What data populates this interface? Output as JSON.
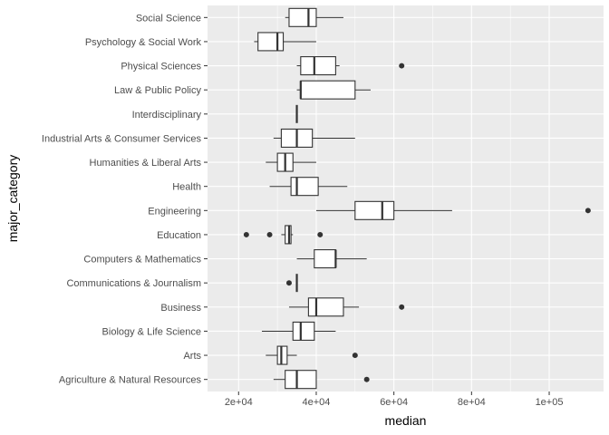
{
  "chart_data": {
    "type": "boxplot",
    "orientation": "horizontal",
    "xlabel": "median",
    "ylabel": "major_category",
    "xlim": [
      12000,
      114000
    ],
    "xticks": [
      20000,
      40000,
      60000,
      80000,
      100000
    ],
    "xtick_labels": [
      "2e+04",
      "4e+04",
      "6e+04",
      "8e+04",
      "1e+05"
    ],
    "grid": true,
    "legend": "none",
    "colors": {
      "panel": "#ebebeb",
      "grid": "#ffffff",
      "box_fill": "#ffffff",
      "box_line": "#333333",
      "outlier": "#333333"
    },
    "categories": [
      "Agriculture & Natural Resources",
      "Arts",
      "Biology & Life Science",
      "Business",
      "Communications & Journalism",
      "Computers & Mathematics",
      "Education",
      "Engineering",
      "Health",
      "Humanities & Liberal Arts",
      "Industrial Arts & Consumer Services",
      "Interdisciplinary",
      "Law & Public Policy",
      "Physical Sciences",
      "Psychology & Social Work",
      "Social Science"
    ],
    "boxes": [
      {
        "category": "Agriculture & Natural Resources",
        "min": 29000,
        "q1": 32000,
        "median": 35000,
        "q3": 40000,
        "max": 40000,
        "outliers": [
          53000
        ]
      },
      {
        "category": "Arts",
        "min": 27000,
        "q1": 30000,
        "median": 31000,
        "q3": 32500,
        "max": 35000,
        "outliers": [
          50000
        ]
      },
      {
        "category": "Biology & Life Science",
        "min": 26000,
        "q1": 34000,
        "median": 36000,
        "q3": 39500,
        "max": 45000,
        "outliers": []
      },
      {
        "category": "Business",
        "min": 33000,
        "q1": 38000,
        "median": 40000,
        "q3": 47000,
        "max": 51000,
        "outliers": [
          62000
        ]
      },
      {
        "category": "Communications & Journalism",
        "min": 35000,
        "q1": 35000,
        "median": 35000,
        "q3": 35000,
        "max": 35000,
        "outliers": [
          33000
        ]
      },
      {
        "category": "Computers & Mathematics",
        "min": 35000,
        "q1": 39500,
        "median": 45000,
        "q3": 45000,
        "max": 53000,
        "outliers": []
      },
      {
        "category": "Education",
        "min": 31000,
        "q1": 32000,
        "median": 33000,
        "q3": 33500,
        "max": 34000,
        "outliers": [
          22000,
          28000,
          41000
        ]
      },
      {
        "category": "Engineering",
        "min": 40000,
        "q1": 50000,
        "median": 57000,
        "q3": 60000,
        "max": 75000,
        "outliers": [
          110000
        ]
      },
      {
        "category": "Health",
        "min": 28000,
        "q1": 33500,
        "median": 35000,
        "q3": 40500,
        "max": 48000,
        "outliers": []
      },
      {
        "category": "Humanities & Liberal Arts",
        "min": 27000,
        "q1": 30000,
        "median": 32000,
        "q3": 34000,
        "max": 40000,
        "outliers": []
      },
      {
        "category": "Industrial Arts & Consumer Services",
        "min": 29000,
        "q1": 31000,
        "median": 35000,
        "q3": 39000,
        "max": 50000,
        "outliers": []
      },
      {
        "category": "Interdisciplinary",
        "min": 35000,
        "q1": 35000,
        "median": 35000,
        "q3": 35000,
        "max": 35000,
        "outliers": []
      },
      {
        "category": "Law & Public Policy",
        "min": 35000,
        "q1": 36000,
        "median": 36000,
        "q3": 50000,
        "max": 54000,
        "outliers": []
      },
      {
        "category": "Physical Sciences",
        "min": 35000,
        "q1": 36000,
        "median": 39500,
        "q3": 45000,
        "max": 46000,
        "outliers": [
          62000
        ]
      },
      {
        "category": "Psychology & Social Work",
        "min": 24000,
        "q1": 25000,
        "median": 30000,
        "q3": 31500,
        "max": 40000,
        "outliers": []
      },
      {
        "category": "Social Science",
        "min": 32000,
        "q1": 33000,
        "median": 38000,
        "q3": 40000,
        "max": 47000,
        "outliers": []
      }
    ]
  }
}
